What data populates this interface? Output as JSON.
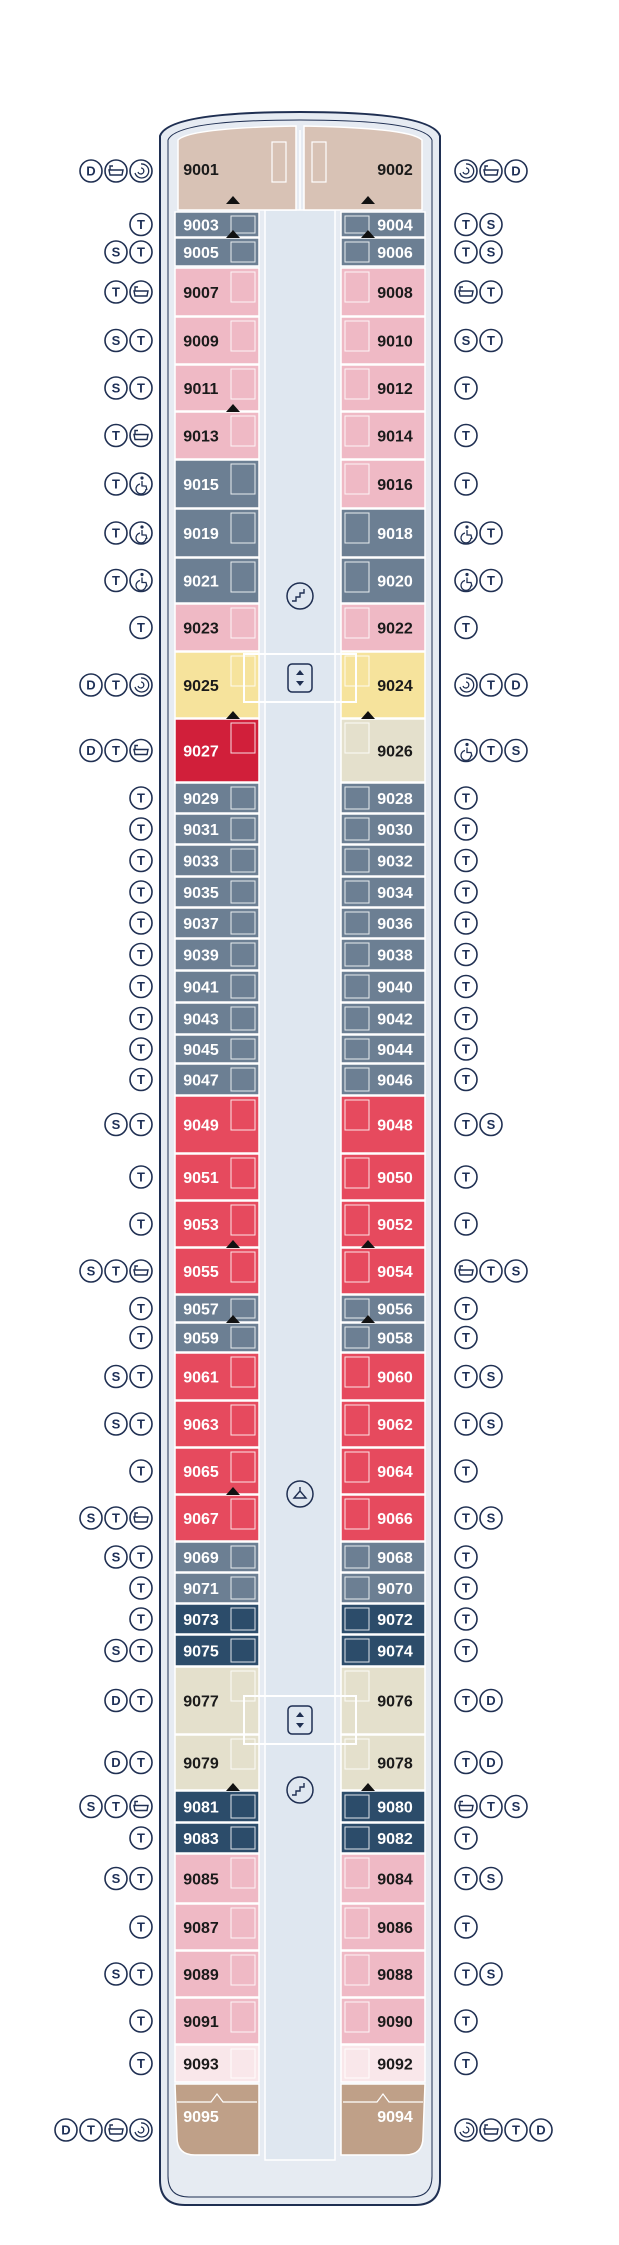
{
  "colors": {
    "hull_fill": "#e6ebf2",
    "hull_stroke": "#1f2f52",
    "corridor": "#dfe7f0",
    "icon_stroke": "#1f2f52",
    "owner_suite": "#d8c2b5",
    "terrace": "#bfa088",
    "slate": "#6c7f93",
    "navy": "#2c4c6a",
    "pink": "#efb9c5",
    "red": "#e64a5e",
    "crimson": "#d11f3a",
    "yellow": "#f6e39c",
    "beige": "#e4e0cc",
    "pale": "#f9e7ea"
  },
  "icon_types": {
    "D": {
      "letter": "D",
      "name": "d-icon"
    },
    "T": {
      "letter": "T",
      "name": "t-icon"
    },
    "S": {
      "letter": "S",
      "name": "s-icon"
    },
    "bath": {
      "letter": "",
      "name": "bathtub-icon"
    },
    "spa": {
      "letter": "",
      "name": "whirlpool-icon"
    },
    "acc": {
      "letter": "",
      "name": "wheelchair-icon"
    }
  },
  "left_cabins": [
    {
      "n": "9001",
      "c": "owner_suite",
      "icons": [
        "D",
        "bath",
        "spa"
      ]
    },
    {
      "n": "9003",
      "c": "slate",
      "icons": [
        "T"
      ]
    },
    {
      "n": "9005",
      "c": "slate",
      "icons": [
        "S",
        "T"
      ]
    },
    {
      "n": "9007",
      "c": "pink",
      "icons": [
        "T",
        "bath"
      ]
    },
    {
      "n": "9009",
      "c": "pink",
      "icons": [
        "S",
        "T"
      ]
    },
    {
      "n": "9011",
      "c": "pink",
      "icons": [
        "S",
        "T"
      ]
    },
    {
      "n": "9013",
      "c": "pink",
      "icons": [
        "T",
        "bath"
      ]
    },
    {
      "n": "9015",
      "c": "slate",
      "icons": [
        "T",
        "acc"
      ]
    },
    {
      "n": "9019",
      "c": "slate",
      "icons": [
        "T",
        "acc"
      ]
    },
    {
      "n": "9021",
      "c": "slate",
      "icons": [
        "T",
        "acc"
      ]
    },
    {
      "n": "9023",
      "c": "pink",
      "icons": [
        "T"
      ]
    },
    {
      "n": "9025",
      "c": "yellow",
      "icons": [
        "D",
        "T",
        "spa"
      ]
    },
    {
      "n": "9027",
      "c": "crimson",
      "icons": [
        "D",
        "T",
        "bath"
      ]
    },
    {
      "n": "9029",
      "c": "slate",
      "icons": [
        "T"
      ]
    },
    {
      "n": "9031",
      "c": "slate",
      "icons": [
        "T"
      ]
    },
    {
      "n": "9033",
      "c": "slate",
      "icons": [
        "T"
      ]
    },
    {
      "n": "9035",
      "c": "slate",
      "icons": [
        "T"
      ]
    },
    {
      "n": "9037",
      "c": "slate",
      "icons": [
        "T"
      ]
    },
    {
      "n": "9039",
      "c": "slate",
      "icons": [
        "T"
      ]
    },
    {
      "n": "9041",
      "c": "slate",
      "icons": [
        "T"
      ]
    },
    {
      "n": "9043",
      "c": "slate",
      "icons": [
        "T"
      ]
    },
    {
      "n": "9045",
      "c": "slate",
      "icons": [
        "T"
      ]
    },
    {
      "n": "9047",
      "c": "slate",
      "icons": [
        "T"
      ]
    },
    {
      "n": "9049",
      "c": "red",
      "icons": [
        "S",
        "T"
      ]
    },
    {
      "n": "9051",
      "c": "red",
      "icons": [
        "T"
      ]
    },
    {
      "n": "9053",
      "c": "red",
      "icons": [
        "T"
      ]
    },
    {
      "n": "9055",
      "c": "red",
      "icons": [
        "S",
        "T",
        "bath"
      ]
    },
    {
      "n": "9057",
      "c": "slate",
      "icons": [
        "T"
      ]
    },
    {
      "n": "9059",
      "c": "slate",
      "icons": [
        "T"
      ]
    },
    {
      "n": "9061",
      "c": "red",
      "icons": [
        "S",
        "T"
      ]
    },
    {
      "n": "9063",
      "c": "red",
      "icons": [
        "S",
        "T"
      ]
    },
    {
      "n": "9065",
      "c": "red",
      "icons": [
        "T"
      ]
    },
    {
      "n": "9067",
      "c": "red",
      "icons": [
        "S",
        "T",
        "bath"
      ]
    },
    {
      "n": "9069",
      "c": "slate",
      "icons": [
        "S",
        "T"
      ]
    },
    {
      "n": "9071",
      "c": "slate",
      "icons": [
        "T"
      ]
    },
    {
      "n": "9073",
      "c": "navy",
      "icons": [
        "T"
      ]
    },
    {
      "n": "9075",
      "c": "navy",
      "icons": [
        "S",
        "T"
      ]
    },
    {
      "n": "9077",
      "c": "beige",
      "icons": [
        "D",
        "T"
      ]
    },
    {
      "n": "9079",
      "c": "beige",
      "icons": [
        "D",
        "T"
      ]
    },
    {
      "n": "9081",
      "c": "navy",
      "icons": [
        "S",
        "T",
        "bath"
      ]
    },
    {
      "n": "9083",
      "c": "navy",
      "icons": [
        "T"
      ]
    },
    {
      "n": "9085",
      "c": "pink",
      "icons": [
        "S",
        "T"
      ]
    },
    {
      "n": "9087",
      "c": "pink",
      "icons": [
        "T"
      ]
    },
    {
      "n": "9089",
      "c": "pink",
      "icons": [
        "S",
        "T"
      ]
    },
    {
      "n": "9091",
      "c": "pink",
      "icons": [
        "T"
      ]
    },
    {
      "n": "9093",
      "c": "pale",
      "icons": [
        "T"
      ]
    },
    {
      "n": "9095",
      "c": "terrace",
      "icons": [
        "D",
        "T",
        "bath",
        "spa"
      ]
    }
  ],
  "right_cabins": [
    {
      "n": "9002",
      "c": "owner_suite",
      "icons": [
        "spa",
        "bath",
        "D"
      ]
    },
    {
      "n": "9004",
      "c": "slate",
      "icons": [
        "T",
        "S"
      ]
    },
    {
      "n": "9006",
      "c": "slate",
      "icons": [
        "T",
        "S"
      ]
    },
    {
      "n": "9008",
      "c": "pink",
      "icons": [
        "bath",
        "T"
      ]
    },
    {
      "n": "9010",
      "c": "pink",
      "icons": [
        "S",
        "T"
      ]
    },
    {
      "n": "9012",
      "c": "pink",
      "icons": [
        "T"
      ]
    },
    {
      "n": "9014",
      "c": "pink",
      "icons": [
        "T"
      ]
    },
    {
      "n": "9016",
      "c": "pink",
      "icons": [
        "T"
      ]
    },
    {
      "n": "9018",
      "c": "slate",
      "icons": [
        "acc",
        "T"
      ]
    },
    {
      "n": "9020",
      "c": "slate",
      "icons": [
        "acc",
        "T"
      ]
    },
    {
      "n": "9022",
      "c": "pink",
      "icons": [
        "T"
      ]
    },
    {
      "n": "9024",
      "c": "yellow",
      "icons": [
        "spa",
        "T",
        "D"
      ]
    },
    {
      "n": "9026",
      "c": "beige",
      "icons": [
        "acc",
        "T",
        "S"
      ]
    },
    {
      "n": "9028",
      "c": "slate",
      "icons": [
        "T"
      ]
    },
    {
      "n": "9030",
      "c": "slate",
      "icons": [
        "T"
      ]
    },
    {
      "n": "9032",
      "c": "slate",
      "icons": [
        "T"
      ]
    },
    {
      "n": "9034",
      "c": "slate",
      "icons": [
        "T"
      ]
    },
    {
      "n": "9036",
      "c": "slate",
      "icons": [
        "T"
      ]
    },
    {
      "n": "9038",
      "c": "slate",
      "icons": [
        "T"
      ]
    },
    {
      "n": "9040",
      "c": "slate",
      "icons": [
        "T"
      ]
    },
    {
      "n": "9042",
      "c": "slate",
      "icons": [
        "T"
      ]
    },
    {
      "n": "9044",
      "c": "slate",
      "icons": [
        "T"
      ]
    },
    {
      "n": "9046",
      "c": "slate",
      "icons": [
        "T"
      ]
    },
    {
      "n": "9048",
      "c": "red",
      "icons": [
        "T",
        "S"
      ]
    },
    {
      "n": "9050",
      "c": "red",
      "icons": [
        "T"
      ]
    },
    {
      "n": "9052",
      "c": "red",
      "icons": [
        "T"
      ]
    },
    {
      "n": "9054",
      "c": "red",
      "icons": [
        "bath",
        "T",
        "S"
      ]
    },
    {
      "n": "9056",
      "c": "slate",
      "icons": [
        "T"
      ]
    },
    {
      "n": "9058",
      "c": "slate",
      "icons": [
        "T"
      ]
    },
    {
      "n": "9060",
      "c": "red",
      "icons": [
        "T",
        "S"
      ]
    },
    {
      "n": "9062",
      "c": "red",
      "icons": [
        "T",
        "S"
      ]
    },
    {
      "n": "9064",
      "c": "red",
      "icons": [
        "T"
      ]
    },
    {
      "n": "9066",
      "c": "red",
      "icons": [
        "T",
        "S"
      ]
    },
    {
      "n": "9068",
      "c": "slate",
      "icons": [
        "T"
      ]
    },
    {
      "n": "9070",
      "c": "slate",
      "icons": [
        "T"
      ]
    },
    {
      "n": "9072",
      "c": "navy",
      "icons": [
        "T"
      ]
    },
    {
      "n": "9074",
      "c": "navy",
      "icons": [
        "T"
      ]
    },
    {
      "n": "9076",
      "c": "beige",
      "icons": [
        "T",
        "D"
      ]
    },
    {
      "n": "9078",
      "c": "beige",
      "icons": [
        "T",
        "D"
      ]
    },
    {
      "n": "9080",
      "c": "navy",
      "icons": [
        "bath",
        "T",
        "S"
      ]
    },
    {
      "n": "9082",
      "c": "navy",
      "icons": [
        "T"
      ]
    },
    {
      "n": "9084",
      "c": "pink",
      "icons": [
        "T",
        "S"
      ]
    },
    {
      "n": "9086",
      "c": "pink",
      "icons": [
        "T"
      ]
    },
    {
      "n": "9088",
      "c": "pink",
      "icons": [
        "T",
        "S"
      ]
    },
    {
      "n": "9090",
      "c": "pink",
      "icons": [
        "T"
      ]
    },
    {
      "n": "9092",
      "c": "pale",
      "icons": [
        "T"
      ]
    },
    {
      "n": "9094",
      "c": "terrace",
      "icons": [
        "spa",
        "bath",
        "T",
        "D"
      ]
    }
  ],
  "central": [
    {
      "kind": "stairs",
      "name": "stairs-icon-forward"
    },
    {
      "kind": "elevator",
      "name": "elevator-icon-forward"
    },
    {
      "kind": "service",
      "name": "laundry-icon"
    },
    {
      "kind": "elevator",
      "name": "elevator-icon-aft"
    },
    {
      "kind": "stairs",
      "name": "stairs-icon-aft"
    }
  ]
}
